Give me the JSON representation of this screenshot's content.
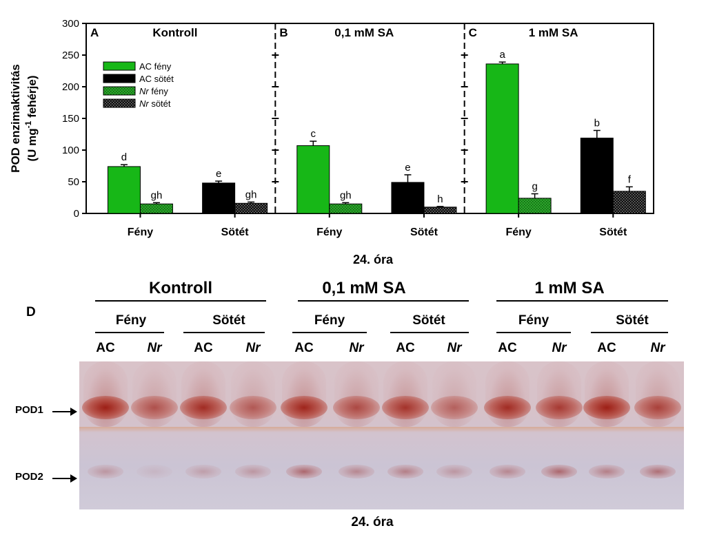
{
  "chart_data": {
    "type": "bar",
    "ylabel_line1": "POD enzimaktivitás",
    "ylabel_line2_pre": "(U mg",
    "ylabel_line2_sup": "-1",
    "ylabel_line2_post": " fehérje)",
    "xlabel": "24. óra",
    "ylim": [
      0,
      300
    ],
    "yticks": [
      "0",
      "50",
      "100",
      "150",
      "200",
      "250",
      "300"
    ],
    "panels": [
      {
        "letter": "A",
        "title": "Kontroll",
        "groups": [
          {
            "label": "Fény",
            "bars": [
              {
                "series": "AC fény",
                "value": 74,
                "err": 3,
                "letter": "d"
              },
              {
                "series": "Nr fény",
                "value": 15,
                "err": 2,
                "letter": "gh"
              }
            ]
          },
          {
            "label": "Sötét",
            "bars": [
              {
                "series": "AC sötét",
                "value": 48,
                "err": 3,
                "letter": "e"
              },
              {
                "series": "Nr sötét",
                "value": 16,
                "err": 2,
                "letter": "gh"
              }
            ]
          }
        ]
      },
      {
        "letter": "B",
        "title": "0,1 mM SA",
        "groups": [
          {
            "label": "Fény",
            "bars": [
              {
                "series": "AC fény",
                "value": 107,
                "err": 7,
                "letter": "c"
              },
              {
                "series": "Nr fény",
                "value": 15,
                "err": 2,
                "letter": "gh"
              }
            ]
          },
          {
            "label": "Sötét",
            "bars": [
              {
                "series": "AC sötét",
                "value": 49,
                "err": 12,
                "letter": "e"
              },
              {
                "series": "Nr sötét",
                "value": 10,
                "err": 1,
                "letter": "h"
              }
            ]
          }
        ]
      },
      {
        "letter": "C",
        "title": "1 mM SA",
        "groups": [
          {
            "label": "Fény",
            "bars": [
              {
                "series": "AC fény",
                "value": 236,
                "err": 3,
                "letter": "a"
              },
              {
                "series": "Nr fény",
                "value": 24,
                "err": 7,
                "letter": "g"
              }
            ]
          },
          {
            "label": "Sötét",
            "bars": [
              {
                "series": "AC sötét",
                "value": 119,
                "err": 12,
                "letter": "b"
              },
              {
                "series": "Nr sötét",
                "value": 35,
                "err": 7,
                "letter": "f"
              }
            ]
          }
        ]
      }
    ],
    "legend": [
      {
        "key": "AC fény",
        "pre": "AC fény",
        "ital": "",
        "post": ""
      },
      {
        "key": "AC sötét",
        "pre": "AC sötét",
        "ital": "",
        "post": ""
      },
      {
        "key": "Nr fény",
        "pre": "",
        "ital": "Nr",
        "post": " fény"
      },
      {
        "key": "Nr sötét",
        "pre": "",
        "ital": "Nr",
        "post": " sötét"
      }
    ],
    "legend_placement": "upper-left of panel A",
    "colors": {
      "AC fény": "#17b717",
      "AC sötét": "#000000",
      "Nr fény": "#2aa52a",
      "Nr sötét": "#1a1a1a"
    }
  },
  "gel": {
    "panel_letter": "D",
    "groups": [
      {
        "title": "Kontroll",
        "conditions": [
          {
            "label": "Fény",
            "lanes": [
              "AC",
              "Nr"
            ]
          },
          {
            "label": "Sötét",
            "lanes": [
              "AC",
              "Nr"
            ]
          }
        ]
      },
      {
        "title": "0,1 mM SA",
        "conditions": [
          {
            "label": "Fény",
            "lanes": [
              "AC",
              "Nr"
            ]
          },
          {
            "label": "Sötét",
            "lanes": [
              "AC",
              "Nr"
            ]
          }
        ]
      },
      {
        "title": "1 mM SA",
        "conditions": [
          {
            "label": "Fény",
            "lanes": [
              "AC",
              "Nr"
            ]
          },
          {
            "label": "Sötét",
            "lanes": [
              "AC",
              "Nr"
            ]
          }
        ]
      }
    ],
    "band_labels": [
      "POD1",
      "POD2"
    ],
    "pod1_intensity": [
      0.95,
      0.6,
      0.85,
      0.55,
      0.9,
      0.65,
      0.8,
      0.5,
      0.85,
      0.75,
      0.95,
      0.7
    ],
    "pod2_intensity": [
      0.3,
      0.1,
      0.25,
      0.3,
      0.6,
      0.4,
      0.45,
      0.3,
      0.4,
      0.6,
      0.45,
      0.55
    ],
    "xlabel": "24. óra"
  }
}
